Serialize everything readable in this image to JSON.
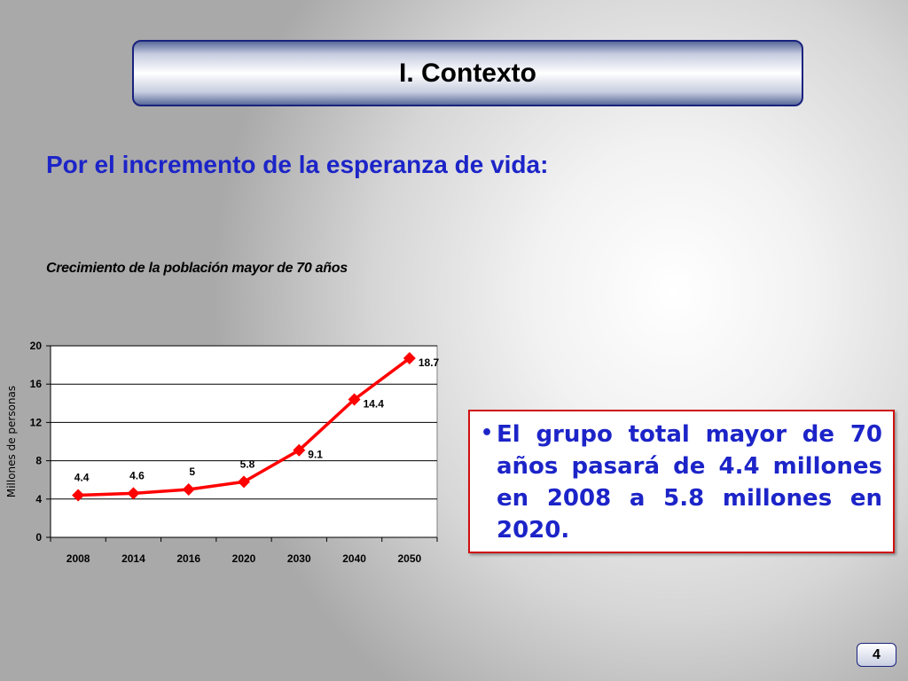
{
  "slide": {
    "title": "I. Contexto",
    "subtitle": "Por el incremento de la esperanza de vida:",
    "page_number": "4"
  },
  "text_box": {
    "bullet_text": "El grupo total mayor de 70 años pasará de 4.4 millones en 2008 a 5.8 millones en 2020."
  },
  "chart_data": {
    "type": "line",
    "title": "Crecimiento de la población mayor de 70 años",
    "xlabel": "",
    "ylabel": "Millones de personas",
    "categories": [
      "2008",
      "2014",
      "2016",
      "2020",
      "2030",
      "2040",
      "2050"
    ],
    "values": [
      4.4,
      4.6,
      5,
      5.8,
      9.1,
      14.4,
      18.7
    ],
    "data_labels": [
      "4.4",
      "4.6",
      "5",
      "5.8",
      "9.1",
      "14.4",
      "18.7"
    ],
    "ylim": [
      0,
      20
    ],
    "yticks": [
      "0",
      "4",
      "8",
      "12",
      "16",
      "20"
    ],
    "grid": true,
    "legend": "none",
    "color": "#ff0000"
  }
}
